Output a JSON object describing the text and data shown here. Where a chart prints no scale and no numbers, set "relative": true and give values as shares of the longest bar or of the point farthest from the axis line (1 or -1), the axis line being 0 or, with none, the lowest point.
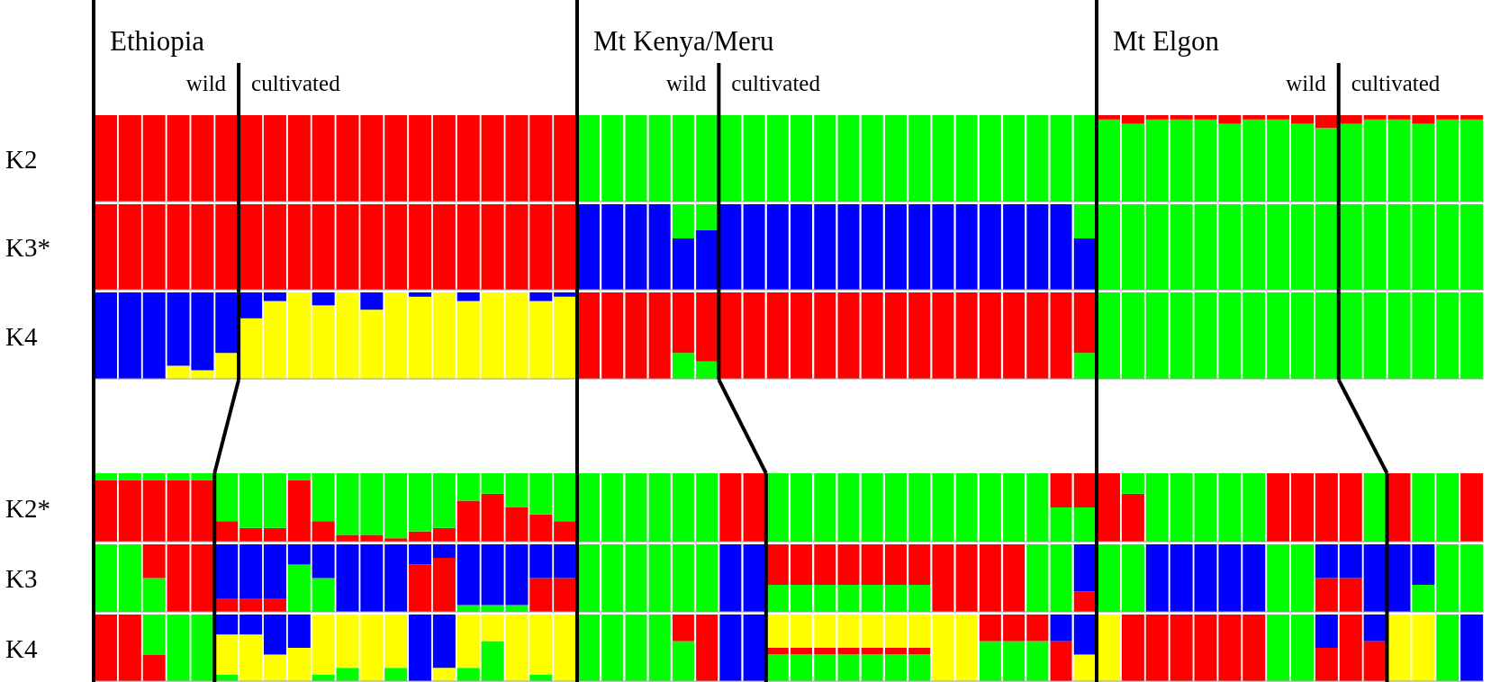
{
  "chart_data": [
    {
      "type": "bar",
      "stacked": true,
      "relative": true,
      "title": "Ethiopia",
      "ylabel": "K2",
      "annotations": [
        "wild",
        "cultivated"
      ],
      "categories": [
        null,
        null,
        null,
        null,
        null,
        null,
        null,
        null,
        null,
        null,
        null,
        null,
        null,
        null,
        null,
        null,
        null,
        null,
        null,
        null
      ],
      "series": [
        {
          "color": "#ff0000",
          "values": [
            1,
            1,
            1,
            1,
            1,
            1,
            1,
            1,
            1,
            1,
            1,
            1,
            1,
            1,
            1,
            1,
            1,
            1,
            1,
            1
          ]
        }
      ]
    },
    {
      "type": "bar",
      "stacked": true,
      "relative": true,
      "title": "Mt Kenya/Meru",
      "annotations": [
        "wild",
        "cultivated"
      ],
      "categories": [
        null,
        null,
        null,
        null,
        null,
        null,
        null,
        null,
        null,
        null,
        null,
        null,
        null,
        null,
        null,
        null,
        null,
        null,
        null,
        null,
        null,
        null
      ],
      "series": [
        {
          "color": "#00ff00",
          "values": [
            1,
            1,
            1,
            1,
            1,
            1,
            1,
            1,
            1,
            1,
            1,
            1,
            1,
            1,
            1,
            1,
            1,
            1,
            1,
            1,
            1,
            1
          ]
        }
      ]
    },
    {
      "type": "bar",
      "stacked": true,
      "relative": true,
      "title": "Mt Elgon",
      "annotations": [
        "wild",
        "cultivated"
      ],
      "categories": [
        null,
        null,
        null,
        null,
        null,
        null,
        null,
        null,
        null,
        null,
        null,
        null,
        null,
        null,
        null,
        null
      ],
      "series": [
        {
          "color": "#00ff00",
          "values": [
            0.95,
            0.9,
            0.95,
            0.95,
            0.95,
            0.9,
            0.95,
            0.95,
            0.9,
            0.85,
            0.9,
            0.95,
            0.95,
            0.9,
            0.95,
            0.95
          ]
        },
        {
          "color": "#ff0000",
          "values": [
            0.05,
            0.1,
            0.05,
            0.05,
            0.05,
            0.1,
            0.05,
            0.05,
            0.1,
            0.15,
            0.1,
            0.05,
            0.05,
            0.1,
            0.05,
            0.05
          ]
        }
      ]
    },
    {
      "type": "bar",
      "stacked": true,
      "relative": true,
      "ylabel": "K3*",
      "categories": [
        null,
        null,
        null,
        null,
        null,
        null,
        null,
        null,
        null,
        null,
        null,
        null,
        null,
        null,
        null,
        null,
        null,
        null,
        null,
        null
      ],
      "series": [
        {
          "color": "#ff0000",
          "values": [
            1,
            1,
            1,
            1,
            1,
            1,
            1,
            1,
            1,
            1,
            1,
            1,
            1,
            1,
            1,
            1,
            1,
            1,
            1,
            1
          ]
        }
      ]
    },
    {
      "type": "bar",
      "stacked": true,
      "relative": true,
      "categories": [
        null,
        null,
        null,
        null,
        null,
        null,
        null,
        null,
        null,
        null,
        null,
        null,
        null,
        null,
        null,
        null,
        null,
        null,
        null,
        null,
        null,
        null
      ],
      "series": [
        {
          "color": "#0000ff",
          "values": [
            1,
            1,
            1,
            1,
            0.6,
            0.7,
            1,
            1,
            1,
            1,
            1,
            1,
            1,
            1,
            1,
            1,
            1,
            1,
            1,
            1,
            1,
            0.6
          ]
        },
        {
          "color": "#00ff00",
          "values": [
            0,
            0,
            0,
            0,
            0.4,
            0.3,
            0,
            0,
            0,
            0,
            0,
            0,
            0,
            0,
            0,
            0,
            0,
            0,
            0,
            0,
            0,
            0.4
          ]
        }
      ]
    },
    {
      "type": "bar",
      "stacked": true,
      "relative": true,
      "categories": [
        null,
        null,
        null,
        null,
        null,
        null,
        null,
        null,
        null,
        null,
        null,
        null,
        null,
        null,
        null,
        null
      ],
      "series": [
        {
          "color": "#00ff00",
          "values": [
            1,
            1,
            1,
            1,
            1,
            1,
            1,
            1,
            1,
            1,
            1,
            1,
            1,
            1,
            1,
            1
          ]
        }
      ]
    },
    {
      "type": "bar",
      "stacked": true,
      "relative": true,
      "ylabel": "K4",
      "categories": [
        null,
        null,
        null,
        null,
        null,
        null,
        null,
        null,
        null,
        null,
        null,
        null,
        null,
        null,
        null,
        null,
        null,
        null,
        null,
        null
      ],
      "series": [
        {
          "color": "#ffff00",
          "values": [
            0,
            0,
            0,
            0.15,
            0.1,
            0.3,
            0.7,
            0.9,
            1,
            0.85,
            1,
            0.8,
            1,
            0.95,
            1,
            0.9,
            1,
            1,
            0.9,
            0.95
          ]
        },
        {
          "color": "#0000ff",
          "values": [
            1,
            1,
            1,
            0.85,
            0.9,
            0.7,
            0.3,
            0.1,
            0,
            0.15,
            0,
            0.2,
            0,
            0.05,
            0,
            0.1,
            0,
            0,
            0.1,
            0.05
          ]
        }
      ]
    },
    {
      "type": "bar",
      "stacked": true,
      "relative": true,
      "categories": [
        null,
        null,
        null,
        null,
        null,
        null,
        null,
        null,
        null,
        null,
        null,
        null,
        null,
        null,
        null,
        null,
        null,
        null,
        null,
        null,
        null,
        null
      ],
      "series": [
        {
          "color": "#00ff00",
          "values": [
            0,
            0,
            0,
            0,
            0.3,
            0.2,
            0,
            0,
            0,
            0,
            0,
            0,
            0,
            0,
            0,
            0,
            0,
            0,
            0,
            0,
            0,
            0.3
          ]
        },
        {
          "color": "#ff0000",
          "values": [
            1,
            1,
            1,
            1,
            0.7,
            0.8,
            1,
            1,
            1,
            1,
            1,
            1,
            1,
            1,
            1,
            1,
            1,
            1,
            1,
            1,
            1,
            0.7
          ]
        }
      ]
    },
    {
      "type": "bar",
      "stacked": true,
      "relative": true,
      "categories": [
        null,
        null,
        null,
        null,
        null,
        null,
        null,
        null,
        null,
        null,
        null,
        null,
        null,
        null,
        null,
        null
      ],
      "series": [
        {
          "color": "#00ff00",
          "values": [
            1,
            1,
            1,
            1,
            1,
            1,
            1,
            1,
            1,
            1,
            1,
            1,
            1,
            1,
            1,
            1
          ]
        }
      ]
    },
    {
      "type": "bar",
      "stacked": true,
      "relative": true,
      "ylabel": "K2*",
      "categories": [
        null,
        null,
        null,
        null,
        null,
        null,
        null,
        null,
        null,
        null,
        null,
        null,
        null,
        null,
        null,
        null,
        null,
        null,
        null,
        null
      ],
      "series": [
        {
          "color": "#ff0000",
          "values": [
            0.9,
            0.9,
            0.9,
            0.9,
            0.9,
            0.3,
            0.2,
            0.2,
            0.9,
            0.3,
            0.1,
            0.1,
            0.05,
            0.15,
            0.2,
            0.6,
            0.7,
            0.5,
            0.4,
            0.3
          ]
        },
        {
          "color": "#00ff00",
          "values": [
            0.1,
            0.1,
            0.1,
            0.1,
            0.1,
            0.7,
            0.8,
            0.8,
            0.1,
            0.7,
            0.9,
            0.9,
            0.95,
            0.85,
            0.8,
            0.4,
            0.3,
            0.5,
            0.6,
            0.7
          ]
        }
      ]
    },
    {
      "type": "bar",
      "stacked": true,
      "relative": true,
      "categories": [
        null,
        null,
        null,
        null,
        null,
        null,
        null,
        null,
        null,
        null,
        null,
        null,
        null,
        null,
        null,
        null,
        null,
        null,
        null,
        null,
        null,
        null
      ],
      "series": [
        {
          "color": "#00ff00",
          "values": [
            1,
            1,
            1,
            1,
            1,
            1,
            0,
            0,
            1,
            1,
            1,
            1,
            1,
            1,
            1,
            1,
            1,
            1,
            1,
            1,
            0.5,
            0.5
          ]
        },
        {
          "color": "#ff0000",
          "values": [
            0,
            0,
            0,
            0,
            0,
            0,
            1,
            1,
            0,
            0,
            0,
            0,
            0,
            0,
            0,
            0,
            0,
            0,
            0,
            0,
            0.5,
            0.5
          ]
        }
      ]
    },
    {
      "type": "bar",
      "stacked": true,
      "relative": true,
      "categories": [
        null,
        null,
        null,
        null,
        null,
        null,
        null,
        null,
        null,
        null,
        null,
        null,
        null,
        null,
        null,
        null
      ],
      "series": [
        {
          "color": "#ff0000",
          "values": [
            1,
            0.7,
            0,
            0,
            0,
            0,
            0,
            1,
            1,
            1,
            1,
            0,
            1,
            0,
            0,
            1
          ]
        },
        {
          "color": "#00ff00",
          "values": [
            0,
            0.3,
            1,
            1,
            1,
            1,
            1,
            0,
            0,
            0,
            0,
            1,
            0,
            1,
            1,
            0
          ]
        }
      ]
    },
    {
      "type": "bar",
      "stacked": true,
      "relative": true,
      "ylabel": "K3",
      "categories": [
        null,
        null,
        null,
        null,
        null,
        null,
        null,
        null,
        null,
        null,
        null,
        null,
        null,
        null,
        null,
        null,
        null,
        null,
        null,
        null
      ],
      "series": [
        {
          "color": "#00ff00",
          "values": [
            1,
            1,
            0.5,
            0,
            0,
            0,
            0,
            0,
            0.7,
            0.5,
            0,
            0,
            0,
            0,
            0,
            0.1,
            0.1,
            0.1,
            0,
            0
          ]
        },
        {
          "color": "#ff0000",
          "values": [
            0,
            0,
            0.5,
            1,
            1,
            0.2,
            0.2,
            0.2,
            0,
            0,
            0,
            0,
            0,
            0.7,
            0.8,
            0,
            0,
            0,
            0.5,
            0.5
          ]
        },
        {
          "color": "#0000ff",
          "values": [
            0,
            0,
            0,
            0,
            0,
            0.8,
            0.8,
            0.8,
            0.3,
            0.5,
            1,
            1,
            1,
            0.3,
            0.2,
            0.9,
            0.9,
            0.9,
            0.5,
            0.5
          ]
        }
      ]
    },
    {
      "type": "bar",
      "stacked": true,
      "relative": true,
      "categories": [
        null,
        null,
        null,
        null,
        null,
        null,
        null,
        null,
        null,
        null,
        null,
        null,
        null,
        null,
        null,
        null,
        null,
        null,
        null,
        null,
        null,
        null
      ],
      "series": [
        {
          "color": "#00ff00",
          "values": [
            1,
            1,
            1,
            1,
            1,
            1,
            0,
            0,
            0.4,
            0.4,
            0.4,
            0.4,
            0.4,
            0.4,
            0.4,
            0,
            0,
            0,
            0,
            1,
            1,
            0
          ]
        },
        {
          "color": "#ff0000",
          "values": [
            0,
            0,
            0,
            0,
            0,
            0,
            0,
            0,
            0.6,
            0.6,
            0.6,
            0.6,
            0.6,
            0.6,
            0.6,
            1,
            1,
            1,
            1,
            0,
            0,
            0.3
          ]
        },
        {
          "color": "#0000ff",
          "values": [
            0,
            0,
            0,
            0,
            0,
            0,
            1,
            1,
            0,
            0,
            0,
            0,
            0,
            0,
            0,
            0,
            0,
            0,
            0,
            0,
            0,
            0.7
          ]
        }
      ]
    },
    {
      "type": "bar",
      "stacked": true,
      "relative": true,
      "categories": [
        null,
        null,
        null,
        null,
        null,
        null,
        null,
        null,
        null,
        null,
        null,
        null,
        null,
        null,
        null,
        null
      ],
      "series": [
        {
          "color": "#00ff00",
          "values": [
            1,
            1,
            0,
            0,
            0,
            0,
            0,
            1,
            1,
            0,
            0,
            0,
            0,
            0.4,
            1,
            1
          ]
        },
        {
          "color": "#ff0000",
          "values": [
            0,
            0,
            0,
            0,
            0,
            0,
            0,
            0,
            0,
            0.5,
            0.5,
            0,
            0,
            0,
            0,
            0
          ]
        },
        {
          "color": "#0000ff",
          "values": [
            0,
            0,
            1,
            1,
            1,
            1,
            1,
            0,
            0,
            0.5,
            0.5,
            1,
            1,
            0.6,
            0,
            0
          ]
        }
      ]
    },
    {
      "type": "bar",
      "stacked": true,
      "relative": true,
      "ylabel": "K4",
      "categories": [
        null,
        null,
        null,
        null,
        null,
        null,
        null,
        null,
        null,
        null,
        null,
        null,
        null,
        null,
        null,
        null,
        null,
        null,
        null,
        null
      ],
      "series": [
        {
          "color": "#ff0000",
          "values": [
            1,
            1,
            0.4,
            0,
            0,
            0,
            0,
            0,
            0,
            0,
            0,
            0,
            0,
            0,
            0,
            0,
            0,
            0,
            0,
            0
          ]
        },
        {
          "color": "#00ff00",
          "values": [
            0,
            0,
            0.6,
            1,
            1,
            0.1,
            0,
            0,
            0,
            0.1,
            0.2,
            0,
            0.2,
            0,
            0,
            0.2,
            0.6,
            0,
            0.1,
            0
          ]
        },
        {
          "color": "#ffff00",
          "values": [
            0,
            0,
            0,
            0,
            0,
            0.6,
            0.7,
            0.4,
            0.5,
            0.9,
            0.8,
            1,
            0.8,
            0,
            0.2,
            0.8,
            0.4,
            1,
            0.9,
            1
          ]
        },
        {
          "color": "#0000ff",
          "values": [
            0,
            0,
            0,
            0,
            0,
            0.3,
            0.3,
            0.6,
            0.5,
            0,
            0,
            0,
            0,
            1,
            0.8,
            0,
            0,
            0,
            0,
            0
          ]
        }
      ]
    },
    {
      "type": "bar",
      "stacked": true,
      "relative": true,
      "categories": [
        null,
        null,
        null,
        null,
        null,
        null,
        null,
        null,
        null,
        null,
        null,
        null,
        null,
        null,
        null,
        null,
        null,
        null,
        null,
        null,
        null,
        null
      ],
      "series": [
        {
          "color": "#00ff00",
          "values": [
            1,
            1,
            1,
            1,
            0.6,
            0,
            0,
            0,
            0.4,
            0.4,
            0.4,
            0.4,
            0.4,
            0.4,
            0.4,
            0,
            0,
            0.6,
            0.6,
            0.6,
            0,
            0
          ]
        },
        {
          "color": "#ff0000",
          "values": [
            0,
            0,
            0,
            0,
            0.4,
            1,
            0,
            0,
            0.1,
            0.1,
            0.1,
            0.1,
            0.1,
            0.1,
            0.1,
            0,
            0,
            0.4,
            0.4,
            0.4,
            0.6,
            0
          ]
        },
        {
          "color": "#ffff00",
          "values": [
            0,
            0,
            0,
            0,
            0,
            0,
            0,
            0,
            0.5,
            0.5,
            0.5,
            0.5,
            0.5,
            0.5,
            0.5,
            1,
            1,
            0,
            0,
            0,
            0,
            0.4
          ]
        },
        {
          "color": "#0000ff",
          "values": [
            0,
            0,
            0,
            0,
            0,
            0,
            1,
            1,
            0,
            0,
            0,
            0,
            0,
            0,
            0,
            0,
            0,
            0,
            0,
            0,
            0.4,
            0.6
          ]
        }
      ]
    },
    {
      "type": "bar",
      "stacked": true,
      "relative": true,
      "categories": [
        null,
        null,
        null,
        null,
        null,
        null,
        null,
        null,
        null,
        null,
        null,
        null,
        null,
        null,
        null,
        null
      ],
      "series": [
        {
          "color": "#ffff00",
          "values": [
            1,
            0,
            0,
            0,
            0,
            0,
            0,
            0,
            0,
            0,
            0,
            0,
            1,
            1,
            0,
            0
          ]
        },
        {
          "color": "#ff0000",
          "values": [
            0,
            1,
            1,
            1,
            1,
            1,
            1,
            0,
            0,
            0.5,
            1,
            0.6,
            0,
            0,
            0,
            0
          ]
        },
        {
          "color": "#00ff00",
          "values": [
            0,
            0,
            0,
            0,
            0,
            0,
            0,
            1,
            1,
            0,
            0,
            0,
            0,
            0,
            1,
            0
          ]
        },
        {
          "color": "#0000ff",
          "values": [
            0,
            0,
            0,
            0,
            0,
            0,
            0,
            0,
            0,
            0.5,
            0,
            0.4,
            0,
            0,
            0,
            1
          ]
        }
      ]
    }
  ]
}
